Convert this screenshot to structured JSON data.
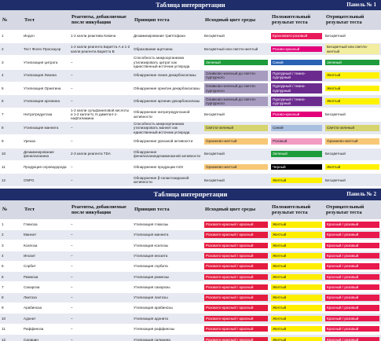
{
  "panels": [
    {
      "title": "Таблица интерпретации",
      "panel": "Панель № 1",
      "headers": [
        "№",
        "Тест",
        "Реагенты, добавляемые после инкубации",
        "Принцип теста",
        "Исходный цвет среды",
        "Положительный результат теста",
        "Отрицательный результат теста"
      ],
      "rows": [
        [
          "1",
          "Индол",
          "1-2 капли реактива Ковача",
          "Дезаминирование триптофана",
          "Бесцветный",
          {
            "text": "Красновато-розовый",
            "color": "#e8195a"
          },
          "Бесцветный"
        ],
        [
          "2",
          "Тест Фогес-Проскауэр",
          "1-2 капли реагента Баритта А и 1-2 капли реагента Баритта В",
          "Образование ацетоина",
          "Бесцветный или светло-желтый",
          {
            "text": "Розово-красный",
            "color": "#e3007a"
          },
          {
            "text": "Бесцветный или светло-желтый",
            "color": "#f3eda0"
          }
        ],
        [
          "3",
          "Утилизация цитрата",
          "–",
          "Способность микроорганизма утилизировать цитрат как единственный источник углерода",
          {
            "text": "Зеленый",
            "color": "#1e9c3c"
          },
          {
            "text": "Синий",
            "color": "#2a62b4"
          },
          {
            "text": "Зеленый",
            "color": "#1e9c3c"
          }
        ],
        [
          "4",
          "Утилизация Лизина",
          "–",
          "Обнаружение лизин декарбоксилазы",
          {
            "text": "Оливково-зеленый до светло-пурпурного",
            "color": "#a79cc0"
          },
          {
            "text": "Пурпурный / темно-пурпурный",
            "color": "#6b2b8e"
          },
          {
            "text": "Желтый",
            "color": "#fff200"
          }
        ],
        [
          "5",
          "Утилизация Орнитина",
          "–",
          "Обнаружение орнитин декарбоксилазы",
          {
            "text": "Оливково-зеленый до светло-пурпурного",
            "color": "#a79cc0"
          },
          {
            "text": "Пурпурный / темно-пурпурный",
            "color": "#6b2b8e"
          },
          {
            "text": "Желтый",
            "color": "#fff200"
          }
        ],
        [
          "6",
          "Утилизация аргинина",
          "–",
          "Обнаружение аргинин декарбоксилазы",
          {
            "text": "Оливково-зеленый до светло-пурпурного",
            "color": "#a79cc0"
          },
          {
            "text": "Пурпурный / темно-пурпурный",
            "color": "#6b2b8e"
          },
          {
            "text": "Желтый",
            "color": "#fff200"
          }
        ],
        [
          "7",
          "Нитратредуктаза",
          "1-2 капли сульфаниловой кислоты и 1-2 капли N, N диметил-1-нафтиламина",
          "Обнаружение нитратредуктазной активности",
          "Бесцветный",
          {
            "text": "Розово-красный",
            "color": "#e3007a"
          },
          "Бесцветный"
        ],
        [
          "8",
          "Утилизация маннита",
          "–",
          "Способность микроорганизма утилизировать маннит как единственный источник углерода",
          {
            "text": "Светло-зеленый",
            "color": "#d6d46e"
          },
          {
            "text": "Синий",
            "color": "#a9bfdf"
          },
          {
            "text": "Светло-зеленый",
            "color": "#d6d46e"
          }
        ],
        [
          "9",
          "Уреаза",
          "–",
          "Обнаружение уреазной активности",
          {
            "text": "Оранжево-желтый",
            "color": "#f8c877"
          },
          {
            "text": "Розовый",
            "color": "#f29cc2"
          },
          {
            "text": "Оранжево-желтый",
            "color": "#f8c877"
          }
        ],
        [
          "10",
          "Дезаминирование фенилаланина",
          "2-3 капли реагента TDA",
          "Обнаружение фенилаланиндезаминазной активности",
          "Бесцветный",
          {
            "text": "Зеленый",
            "color": "#1e9c3c"
          },
          "Бесцветный"
        ],
        [
          "11",
          "Продукция сероводорода",
          "–",
          "Обнаружение продукции H2S",
          {
            "text": "Оранжево-желтый",
            "color": "#f8c877"
          },
          {
            "text": "Черный",
            "color": "#000000"
          },
          {
            "text": "Желтый",
            "color": "#fff200"
          }
        ],
        [
          "12",
          "ONPG",
          "–",
          "Обнаружение β-галактозидазной активности",
          "Бесцветный",
          {
            "text": "Желтый",
            "color": "#fff200"
          },
          "Бесцветный"
        ]
      ]
    },
    {
      "title": "Таблица интерпретации",
      "panel": "Панель № 2",
      "headers": [
        "№",
        "Тест",
        "Реагенты, добавляемые после инкубации",
        "Принцип теста",
        "Исходный цвет среды",
        "Положительный результат теста",
        "Отрицательный результат теста"
      ],
      "rows": [
        [
          "1",
          "Глюкоза",
          "–",
          "Утилизация глюкозы",
          {
            "text": "Розовато-красный / красный",
            "color": "#e41c3f"
          },
          {
            "text": "Желтый",
            "color": "#ffee00"
          },
          {
            "text": "Красный / розовый",
            "color": "#e8194c"
          }
        ],
        [
          "2",
          "Маннит",
          "–",
          "Утилизация маннита",
          {
            "text": "Розовато-красный / красный",
            "color": "#e41c3f"
          },
          {
            "text": "Желтый",
            "color": "#ffee00"
          },
          {
            "text": "Красный / розовый",
            "color": "#e8194c"
          }
        ],
        [
          "3",
          "Ксилоза",
          "–",
          "Утилизация ксилозы",
          {
            "text": "Розовато-красный / красный",
            "color": "#e41c3f"
          },
          {
            "text": "Желтый",
            "color": "#ffee00"
          },
          {
            "text": "Красный / розовый",
            "color": "#e8194c"
          }
        ],
        [
          "4",
          "Инозит",
          "–",
          "Утилизация инозита",
          {
            "text": "Розовато-красный / красный",
            "color": "#e41c3f"
          },
          {
            "text": "Желтый",
            "color": "#ffee00"
          },
          {
            "text": "Красный / розовый",
            "color": "#e8194c"
          }
        ],
        [
          "5",
          "Сорбит",
          "–",
          "Утилизация сорбита",
          {
            "text": "Розовато-красный / красный",
            "color": "#e41c3f"
          },
          {
            "text": "Желтый",
            "color": "#ffee00"
          },
          {
            "text": "Красный / розовый",
            "color": "#e8194c"
          }
        ],
        [
          "6",
          "Рамноза",
          "–",
          "Утилизация рамнозы",
          {
            "text": "Розовато-красный / красный",
            "color": "#e41c3f"
          },
          {
            "text": "Желтый",
            "color": "#ffee00"
          },
          {
            "text": "Красный / розовый",
            "color": "#e8194c"
          }
        ],
        [
          "7",
          "Сахароза",
          "–",
          "Утилизация сахарозы",
          {
            "text": "Розовато-красный / красный",
            "color": "#e41c3f"
          },
          {
            "text": "Желтый",
            "color": "#ffee00"
          },
          {
            "text": "Красный / розовый",
            "color": "#e8194c"
          }
        ],
        [
          "8",
          "Лактоза",
          "–",
          "Утилизация лактозы",
          {
            "text": "Розовато-красный / красный",
            "color": "#e41c3f"
          },
          {
            "text": "Желтый",
            "color": "#ffee00"
          },
          {
            "text": "Красный / розовый",
            "color": "#e8194c"
          }
        ],
        [
          "9",
          "Арабиноза",
          "–",
          "Утилизация арабинозы",
          {
            "text": "Розовато-красный / красный",
            "color": "#e41c3f"
          },
          {
            "text": "Желтый",
            "color": "#ffee00"
          },
          {
            "text": "Красный / розовый",
            "color": "#e8194c"
          }
        ],
        [
          "10",
          "Адонит",
          "–",
          "Утилизация адонита",
          {
            "text": "Розовато-красный / красный",
            "color": "#e41c3f"
          },
          {
            "text": "Желтый",
            "color": "#ffee00"
          },
          {
            "text": "Красный / розовый",
            "color": "#e8194c"
          }
        ],
        [
          "11",
          "Раффиноза",
          "–",
          "Утилизация раффинозы",
          {
            "text": "Розовато-красный / красный",
            "color": "#e41c3f"
          },
          {
            "text": "Желтый",
            "color": "#ffee00"
          },
          {
            "text": "Красный / розовый",
            "color": "#e8194c"
          }
        ],
        [
          "12",
          "Салицин",
          "–",
          "Утилизация салицина",
          {
            "text": "Розовато-красный / красный",
            "color": "#e41c3f"
          },
          {
            "text": "Желтый",
            "color": "#ffee00"
          },
          {
            "text": "Красный / розовый",
            "color": "#e8194c"
          }
        ]
      ]
    }
  ]
}
